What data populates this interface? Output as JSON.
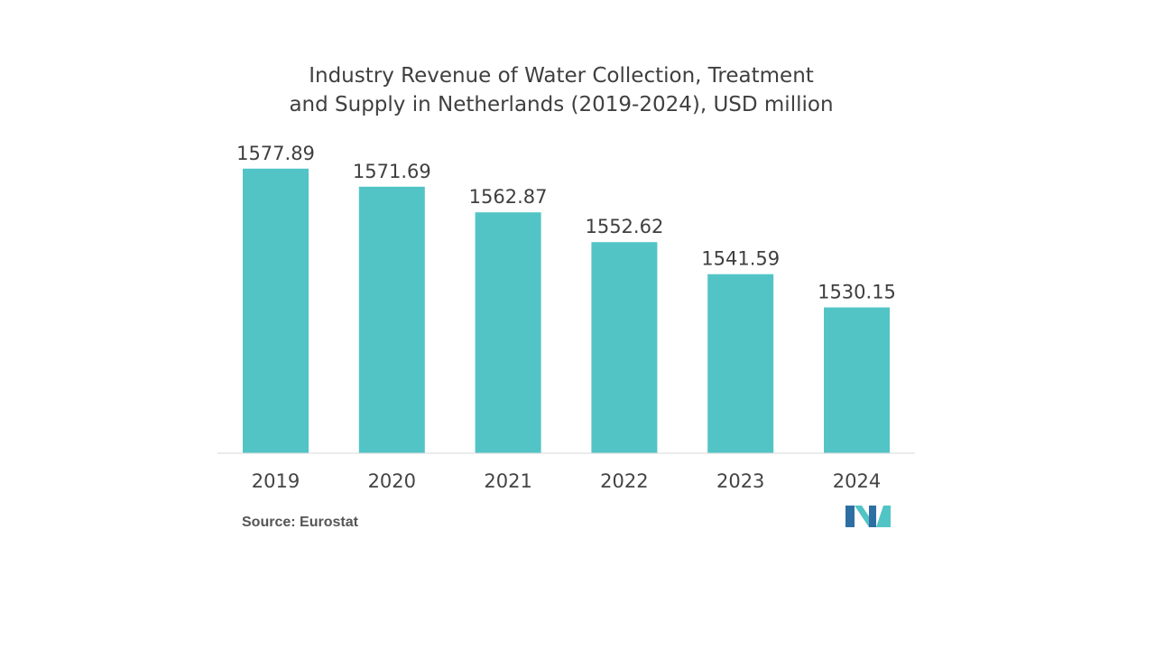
{
  "chart_data": {
    "type": "bar",
    "title_lines": [
      "Industry Revenue of Water Collection, Treatment",
      "and Supply in Netherlands (2019-2024), USD million"
    ],
    "categories": [
      "2019",
      "2020",
      "2021",
      "2022",
      "2023",
      "2024"
    ],
    "values": [
      1577.89,
      1571.69,
      1562.87,
      1552.62,
      1541.59,
      1530.15
    ],
    "value_labels": [
      "1577.89",
      "1571.69",
      "1562.87",
      "1552.62",
      "1541.59",
      "1530.15"
    ],
    "xlabel": "",
    "ylabel": "",
    "ylim": [
      1480,
      1580
    ],
    "grid": false,
    "legend": "none",
    "bar_color": "#52c4c6"
  },
  "source": {
    "label": "Source:",
    "value": "Eurostat"
  },
  "logo": {
    "icon": "mordor-intelligence-logo-icon",
    "colors": [
      "#2d6fa3",
      "#52c4c6"
    ]
  }
}
